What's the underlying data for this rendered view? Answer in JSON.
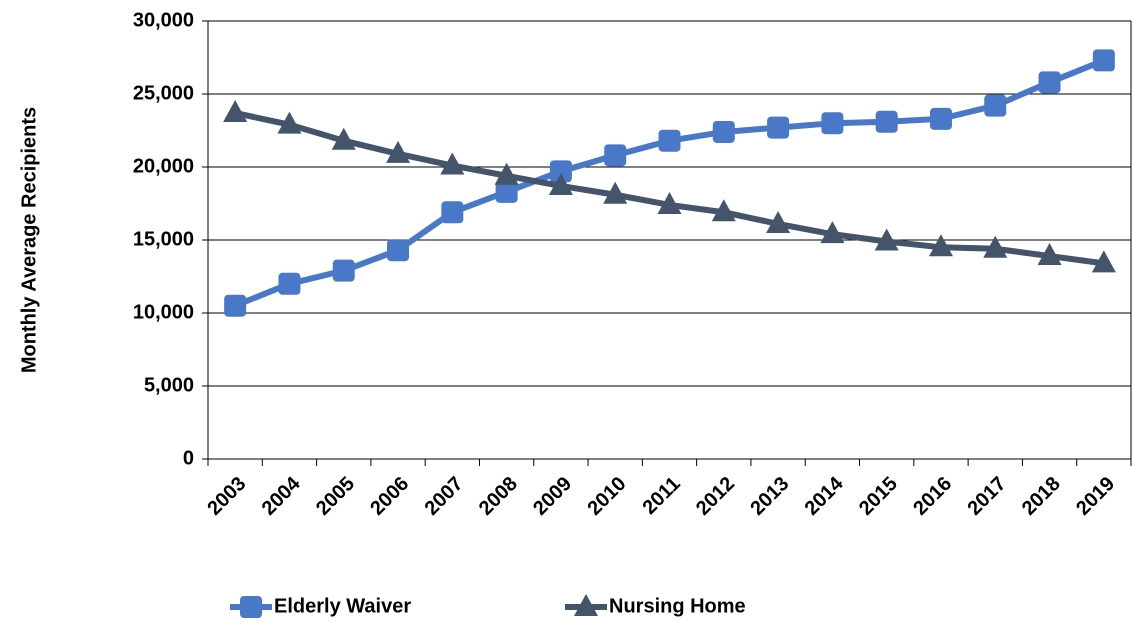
{
  "chart_data": {
    "type": "line",
    "y_label": "Monthly Average Recipients",
    "categories": [
      "2003",
      "2004",
      "2005",
      "2006",
      "2007",
      "2008",
      "2009",
      "2010",
      "2011",
      "2012",
      "2013",
      "2014",
      "2015",
      "2016",
      "2017",
      "2018",
      "2019"
    ],
    "series": [
      {
        "name": "Elderly Waiver",
        "color": "#4a78c8",
        "marker": "square",
        "values": [
          10500,
          12000,
          12900,
          14300,
          16900,
          18300,
          19700,
          20800,
          21800,
          22400,
          22700,
          23000,
          23100,
          23300,
          24200,
          25800,
          27300
        ]
      },
      {
        "name": "Nursing Home",
        "color": "#44546a",
        "marker": "triangle",
        "values": [
          23700,
          22900,
          21800,
          20900,
          20100,
          19400,
          18700,
          18100,
          17400,
          16900,
          16100,
          15400,
          14900,
          14500,
          14400,
          13900,
          13400
        ]
      }
    ],
    "ylim": [
      0,
      30000
    ],
    "yticks": [
      0,
      {
        "value": 5000,
        "label": "5,000"
      },
      {
        "value": 10000,
        "label": "10,000"
      },
      {
        "value": 15000,
        "label": "15,000"
      },
      {
        "value": 20000,
        "label": "20,000"
      },
      {
        "value": 25000,
        "label": "25,000"
      },
      {
        "value": 30000,
        "label": "30,000"
      }
    ],
    "grid": true,
    "legend": "bottom"
  }
}
